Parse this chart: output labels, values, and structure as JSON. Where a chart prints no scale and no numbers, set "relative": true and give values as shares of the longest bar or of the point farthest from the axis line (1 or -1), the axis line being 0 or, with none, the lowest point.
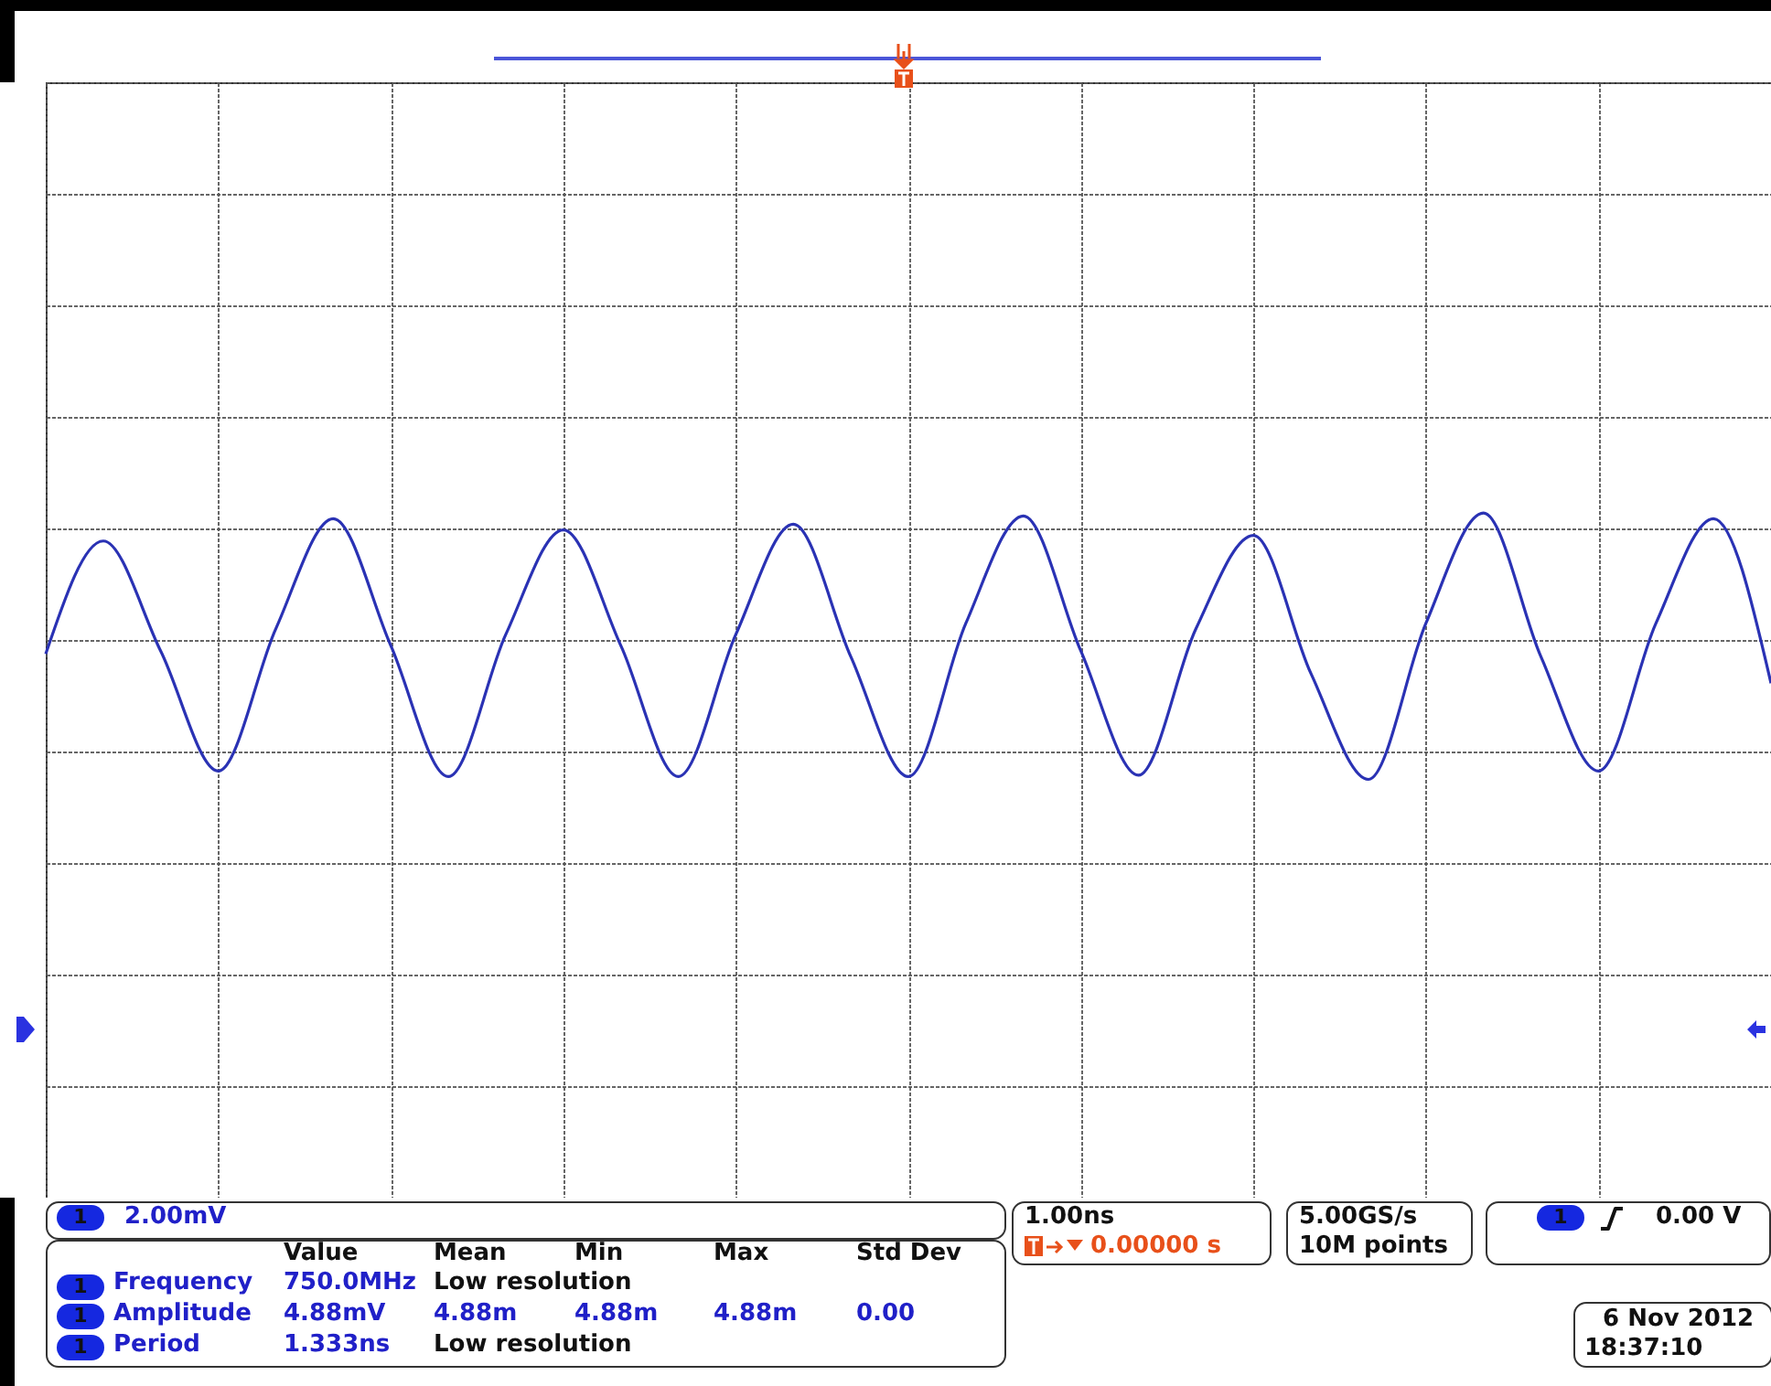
{
  "chart_data": {
    "type": "line",
    "relative": true,
    "grid": true,
    "categories": [
      null,
      null,
      null,
      null,
      null,
      null,
      null,
      null,
      null,
      null,
      null,
      null,
      null,
      null,
      null,
      null,
      null,
      null,
      null,
      null,
      null,
      null,
      null,
      null,
      null,
      null,
      null,
      null,
      null,
      null,
      null
    ],
    "series": [
      {
        "color": "#2a32b4",
        "values": [
          -0.1,
          0.71,
          -0.08,
          -0.94,
          0.08,
          0.87,
          -0.04,
          -0.98,
          0.04,
          0.79,
          -0.04,
          -0.98,
          0.04,
          0.83,
          -0.12,
          -0.98,
          0.12,
          0.89,
          -0.08,
          -0.97,
          0.08,
          0.75,
          -0.24,
          -1,
          0.12,
          0.91,
          -0.12,
          -0.94,
          0.12,
          0.87,
          -0.31
        ]
      }
    ],
    "annotations": [
      "1",
      "2.00mV",
      "Value",
      "Mean",
      "Min",
      "Max",
      "Std Dev",
      "1",
      "Frequency",
      "750.0MHz",
      "Low resolution",
      "1",
      "Amplitude",
      "4.88mV",
      "4.88m",
      "4.88m",
      "4.88m",
      "0.00",
      "1",
      "Period",
      "1.333ns",
      "Low resolution",
      "1.00ns",
      "0.00000 s",
      "5.00GS/s",
      "10M points",
      "1",
      "0.00 V",
      "6 Nov 2012",
      "18:37:10"
    ]
  }
}
